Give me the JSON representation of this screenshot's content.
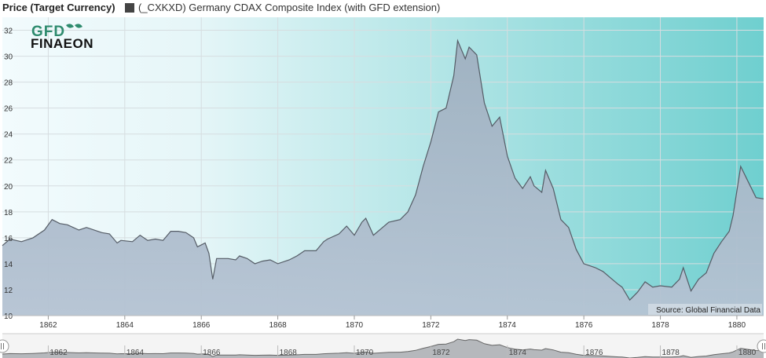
{
  "legend": {
    "title": "Price (Target Currency)",
    "series_label": "(_CXKXD) Germany CDAX Composite Index (with GFD extension)",
    "swatch_color": "#444444"
  },
  "logo": {
    "line1": "GFD",
    "line2": "FINAEON"
  },
  "source": "Source: Global Financial Data",
  "colors": {
    "bg_left": "#f2fbfd",
    "bg_right": "#6fcfcf",
    "area_top": "#9fb0c0",
    "area_bottom": "#b5c3d3",
    "line": "#555c66",
    "navigator_fill": "#8a8f96"
  },
  "chart_data": {
    "type": "area",
    "title": "",
    "ylabel": "Price (Target Currency)",
    "ylim": [
      10,
      33
    ],
    "xlim": [
      1860.8,
      1880.7
    ],
    "y_ticks": [
      10,
      12,
      14,
      16,
      18,
      20,
      22,
      24,
      26,
      28,
      30,
      32
    ],
    "x_ticks": [
      1862,
      1864,
      1866,
      1868,
      1870,
      1872,
      1874,
      1876,
      1878,
      1880
    ],
    "grid": true,
    "series": [
      {
        "name": "(_CXKXD) Germany CDAX Composite Index (with GFD extension)",
        "x": [
          1860.8,
          1861.0,
          1861.3,
          1861.6,
          1861.9,
          1862.1,
          1862.3,
          1862.5,
          1862.8,
          1863.0,
          1863.4,
          1863.6,
          1863.8,
          1863.9,
          1864.2,
          1864.4,
          1864.6,
          1864.8,
          1865.0,
          1865.2,
          1865.4,
          1865.6,
          1865.8,
          1865.9,
          1866.1,
          1866.2,
          1866.3,
          1866.4,
          1866.7,
          1866.9,
          1867.0,
          1867.2,
          1867.4,
          1867.6,
          1867.8,
          1868.0,
          1868.3,
          1868.5,
          1868.7,
          1869.0,
          1869.2,
          1869.3,
          1869.6,
          1869.8,
          1870.0,
          1870.2,
          1870.3,
          1870.5,
          1870.7,
          1870.9,
          1871.2,
          1871.4,
          1871.6,
          1871.8,
          1872.0,
          1872.2,
          1872.4,
          1872.6,
          1872.7,
          1872.9,
          1873.0,
          1873.2,
          1873.4,
          1873.6,
          1873.8,
          1874.0,
          1874.2,
          1874.3,
          1874.4,
          1874.6,
          1874.7,
          1874.9,
          1875.0,
          1875.2,
          1875.4,
          1875.6,
          1875.8,
          1876.0,
          1876.3,
          1876.5,
          1876.7,
          1876.9,
          1877.0,
          1877.2,
          1877.4,
          1877.6,
          1877.8,
          1878.0,
          1878.3,
          1878.5,
          1878.6,
          1878.8,
          1879.0,
          1879.2,
          1879.4,
          1879.6,
          1879.8,
          1879.9,
          1880.1,
          1880.3,
          1880.5,
          1880.7
        ],
        "values": [
          15.4,
          15.9,
          15.7,
          16.0,
          16.6,
          17.4,
          17.1,
          17.0,
          16.6,
          16.8,
          16.4,
          16.3,
          15.6,
          15.8,
          15.7,
          16.2,
          15.8,
          15.9,
          15.8,
          16.5,
          16.5,
          16.4,
          16.0,
          15.3,
          15.6,
          14.8,
          12.8,
          14.4,
          14.4,
          14.3,
          14.6,
          14.4,
          14.0,
          14.2,
          14.3,
          14.0,
          14.3,
          14.6,
          15.0,
          15.0,
          15.7,
          15.9,
          16.3,
          16.9,
          16.2,
          17.2,
          17.5,
          16.2,
          16.7,
          17.2,
          17.4,
          18.0,
          19.3,
          21.5,
          23.4,
          25.7,
          26.0,
          28.5,
          31.2,
          29.8,
          30.7,
          30.1,
          26.4,
          24.6,
          25.3,
          22.3,
          20.6,
          20.2,
          19.8,
          20.7,
          20.0,
          19.5,
          21.2,
          19.8,
          17.4,
          16.8,
          15.1,
          14.0,
          13.7,
          13.4,
          12.9,
          12.4,
          12.2,
          11.2,
          11.8,
          12.6,
          12.2,
          12.3,
          12.2,
          12.8,
          13.7,
          11.9,
          12.8,
          13.3,
          14.8,
          15.7,
          16.5,
          17.7,
          21.5,
          20.3,
          19.1,
          19.0
        ]
      }
    ]
  }
}
